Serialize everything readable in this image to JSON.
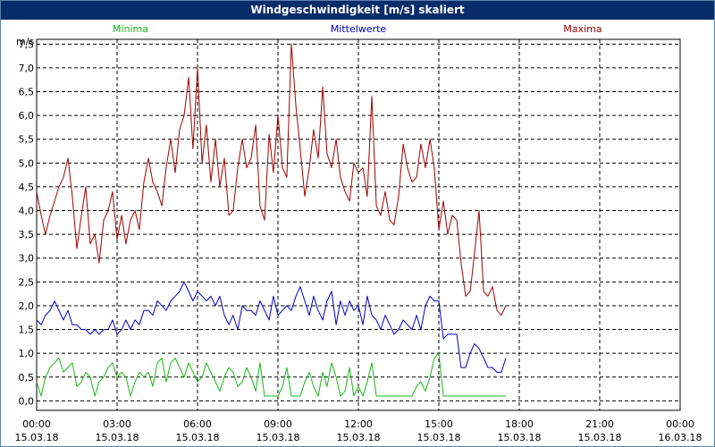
{
  "window": {
    "title": "Windgeschwindigkeit [m/s] skaliert"
  },
  "colors": {
    "min": "#18b818",
    "mean": "#0000c0",
    "max": "#a00000",
    "title_bg": "#0a2c6a"
  },
  "chart_data": {
    "type": "line",
    "title": "Windgeschwindigkeit [m/s] skaliert",
    "ylabel": "m/s",
    "xlabel": "",
    "ylim": [
      -0.2,
      7.6
    ],
    "xlim_hours": [
      0,
      24
    ],
    "y_ticks": [
      "0,0",
      "0,5",
      "1,0",
      "1,5",
      "2,0",
      "2,5",
      "3,0",
      "3,5",
      "4,0",
      "4,5",
      "5,0",
      "5,5",
      "6,0",
      "6,5",
      "7,0",
      "7,5"
    ],
    "y_tick_values": [
      0,
      0.5,
      1,
      1.5,
      2,
      2.5,
      3,
      3.5,
      4,
      4.5,
      5,
      5.5,
      6,
      6.5,
      7,
      7.5
    ],
    "x_ticks": [
      {
        "hour": 0,
        "time": "00:00",
        "date": "15.03.18"
      },
      {
        "hour": 3,
        "time": "03:00",
        "date": "15.03.18"
      },
      {
        "hour": 6,
        "time": "06:00",
        "date": "15.03.18"
      },
      {
        "hour": 9,
        "time": "09:00",
        "date": "15.03.18"
      },
      {
        "hour": 12,
        "time": "12:00",
        "date": "15.03.18"
      },
      {
        "hour": 15,
        "time": "15:00",
        "date": "15.03.18"
      },
      {
        "hour": 18,
        "time": "18:00",
        "date": "15.03.18"
      },
      {
        "hour": 21,
        "time": "21:00",
        "date": "15.03.18"
      },
      {
        "hour": 24,
        "time": "00:00",
        "date": "16.03.18"
      }
    ],
    "grid": true,
    "legend": {
      "min": "Minima",
      "mean": "Mittelwerte",
      "max": "Maxima"
    },
    "series": [
      {
        "name": "Minima",
        "key": "min",
        "x": [
          0,
          0.17,
          0.33,
          0.5,
          0.67,
          0.83,
          1.0,
          1.17,
          1.33,
          1.5,
          1.67,
          1.83,
          2.0,
          2.17,
          2.33,
          2.5,
          2.67,
          2.83,
          3.0,
          3.17,
          3.33,
          3.5,
          3.67,
          3.83,
          4.0,
          4.17,
          4.33,
          4.5,
          4.67,
          4.83,
          5.0,
          5.17,
          5.33,
          5.5,
          5.67,
          5.83,
          6.0,
          6.17,
          6.33,
          6.5,
          6.67,
          6.83,
          7.0,
          7.17,
          7.33,
          7.5,
          7.67,
          7.83,
          8.0,
          8.17,
          8.33,
          8.5,
          8.67,
          8.83,
          9.0,
          9.17,
          9.33,
          9.5,
          9.67,
          9.83,
          10.0,
          10.17,
          10.33,
          10.5,
          10.67,
          10.83,
          11.0,
          11.17,
          11.33,
          11.5,
          11.67,
          11.83,
          12.0,
          12.17,
          12.33,
          12.5,
          12.67,
          12.83,
          13.0,
          13.17,
          13.33,
          13.5,
          13.67,
          13.83,
          14.0,
          14.17,
          14.33,
          14.5,
          14.67,
          14.83,
          15.0,
          15.17,
          15.33,
          15.5,
          15.67,
          15.83,
          16.0,
          16.17,
          16.33,
          16.5,
          16.67,
          16.83,
          17.0,
          17.17,
          17.33,
          17.5
        ],
        "y": [
          0.4,
          0.1,
          0.5,
          0.7,
          0.8,
          0.9,
          0.6,
          0.7,
          0.8,
          0.3,
          0.4,
          0.6,
          0.5,
          0.1,
          0.4,
          0.5,
          0.7,
          0.8,
          0.5,
          0.6,
          0.5,
          0.1,
          0.4,
          0.6,
          0.5,
          0.6,
          0.3,
          0.8,
          0.9,
          0.4,
          0.8,
          0.9,
          0.7,
          0.5,
          0.8,
          0.6,
          0.4,
          0.5,
          0.8,
          0.6,
          0.4,
          0.2,
          0.5,
          0.7,
          0.6,
          0.3,
          0.4,
          0.7,
          0.5,
          0.2,
          0.8,
          0.1,
          0.1,
          0.1,
          0.1,
          0.3,
          0.7,
          0.1,
          0.1,
          0.1,
          0.4,
          0.6,
          0.3,
          0.1,
          0.6,
          0.3,
          0.8,
          0.5,
          0.1,
          0.2,
          0.7,
          0.1,
          0.3,
          0.1,
          0.4,
          0.8,
          0.1,
          0.1,
          0.1,
          0.1,
          0.1,
          0.1,
          0.1,
          0.1,
          0.1,
          0.3,
          0.4,
          0.2,
          0.5,
          0.9,
          1.0,
          0.1,
          0.1,
          0.1,
          0.1,
          0.1,
          0.1,
          0.1,
          0.1,
          0.1,
          0.1,
          0.1,
          0.1,
          0.1,
          0.1,
          0.1
        ]
      },
      {
        "name": "Mittelwerte",
        "key": "mean",
        "x": [
          0,
          0.17,
          0.33,
          0.5,
          0.67,
          0.83,
          1.0,
          1.17,
          1.33,
          1.5,
          1.67,
          1.83,
          2.0,
          2.17,
          2.33,
          2.5,
          2.67,
          2.83,
          3.0,
          3.17,
          3.33,
          3.5,
          3.67,
          3.83,
          4.0,
          4.17,
          4.33,
          4.5,
          4.67,
          4.83,
          5.0,
          5.17,
          5.33,
          5.5,
          5.67,
          5.83,
          6.0,
          6.17,
          6.33,
          6.5,
          6.67,
          6.83,
          7.0,
          7.17,
          7.33,
          7.5,
          7.67,
          7.83,
          8.0,
          8.17,
          8.33,
          8.5,
          8.67,
          8.83,
          9.0,
          9.17,
          9.33,
          9.5,
          9.67,
          9.83,
          10.0,
          10.17,
          10.33,
          10.5,
          10.67,
          10.83,
          11.0,
          11.17,
          11.33,
          11.5,
          11.67,
          11.83,
          12.0,
          12.17,
          12.33,
          12.5,
          12.67,
          12.83,
          13.0,
          13.17,
          13.33,
          13.5,
          13.67,
          13.83,
          14.0,
          14.17,
          14.33,
          14.5,
          14.67,
          14.83,
          15.0,
          15.17,
          15.33,
          15.5,
          15.67,
          15.83,
          16.0,
          16.17,
          16.33,
          16.5,
          16.67,
          16.83,
          17.0,
          17.17,
          17.33,
          17.5
        ],
        "y": [
          1.7,
          1.6,
          1.8,
          1.9,
          2.1,
          1.9,
          1.7,
          1.9,
          1.6,
          1.6,
          1.5,
          1.5,
          1.4,
          1.5,
          1.4,
          1.5,
          1.5,
          1.7,
          1.4,
          1.5,
          1.7,
          1.5,
          1.7,
          1.6,
          1.9,
          1.9,
          1.8,
          2.1,
          2.0,
          1.9,
          2.1,
          2.2,
          2.3,
          2.5,
          2.3,
          2.1,
          2.3,
          2.2,
          2.1,
          2.2,
          2.0,
          2.2,
          1.8,
          1.6,
          1.8,
          1.5,
          2.0,
          1.9,
          1.9,
          1.8,
          2.1,
          1.9,
          1.7,
          2.2,
          1.8,
          1.9,
          2.0,
          1.9,
          2.2,
          2.4,
          2.1,
          1.8,
          2.2,
          1.9,
          1.7,
          2.1,
          2.3,
          1.6,
          2.1,
          1.8,
          2.1,
          1.9,
          2.0,
          1.6,
          2.2,
          1.8,
          1.7,
          1.5,
          1.8,
          1.6,
          1.4,
          1.5,
          1.7,
          1.6,
          1.5,
          1.8,
          1.5,
          2.0,
          2.2,
          2.1,
          2.1,
          1.3,
          1.4,
          1.4,
          1.4,
          0.7,
          0.7,
          1.0,
          1.2,
          1.1,
          0.9,
          0.7,
          0.7,
          0.6,
          0.6,
          0.9
        ]
      },
      {
        "name": "Maxima",
        "key": "max",
        "x": [
          0,
          0.17,
          0.33,
          0.5,
          0.67,
          0.83,
          1.0,
          1.17,
          1.33,
          1.5,
          1.67,
          1.83,
          2.0,
          2.17,
          2.33,
          2.5,
          2.67,
          2.83,
          3.0,
          3.17,
          3.33,
          3.5,
          3.67,
          3.83,
          4.0,
          4.17,
          4.33,
          4.5,
          4.67,
          4.83,
          5.0,
          5.17,
          5.33,
          5.5,
          5.67,
          5.83,
          6.0,
          6.17,
          6.33,
          6.5,
          6.67,
          6.83,
          7.0,
          7.17,
          7.33,
          7.5,
          7.67,
          7.83,
          8.0,
          8.17,
          8.33,
          8.5,
          8.67,
          8.83,
          9.0,
          9.17,
          9.33,
          9.5,
          9.67,
          9.83,
          10.0,
          10.17,
          10.33,
          10.5,
          10.67,
          10.83,
          11.0,
          11.17,
          11.33,
          11.5,
          11.67,
          11.83,
          12.0,
          12.17,
          12.33,
          12.5,
          12.67,
          12.83,
          13.0,
          13.17,
          13.33,
          13.5,
          13.67,
          13.83,
          14.0,
          14.17,
          14.33,
          14.5,
          14.67,
          14.83,
          15.0,
          15.17,
          15.33,
          15.5,
          15.67,
          15.83,
          16.0,
          16.17,
          16.33,
          16.5,
          16.67,
          16.83,
          17.0,
          17.17,
          17.33,
          17.5
        ],
        "y": [
          4.4,
          3.9,
          3.5,
          3.9,
          4.2,
          4.5,
          4.7,
          5.1,
          4.3,
          3.2,
          3.9,
          4.5,
          3.3,
          3.5,
          2.9,
          3.8,
          4.0,
          4.4,
          3.4,
          3.9,
          3.3,
          3.8,
          4.0,
          3.6,
          4.6,
          5.1,
          4.6,
          4.4,
          4.1,
          4.9,
          5.5,
          4.8,
          5.7,
          6.0,
          6.8,
          5.3,
          7.0,
          5.0,
          5.8,
          4.6,
          5.5,
          4.5,
          5.1,
          3.9,
          4.0,
          4.9,
          5.5,
          4.9,
          5.1,
          5.8,
          4.1,
          3.8,
          5.6,
          4.8,
          6.0,
          4.9,
          4.7,
          7.5,
          6.2,
          5.3,
          4.3,
          4.9,
          5.7,
          5.1,
          6.6,
          5.2,
          4.9,
          5.5,
          4.7,
          4.4,
          4.2,
          5.0,
          4.8,
          4.9,
          4.3,
          6.4,
          4.1,
          3.9,
          4.4,
          3.8,
          3.7,
          4.3,
          5.4,
          4.9,
          4.6,
          4.7,
          5.4,
          4.9,
          5.5,
          4.9,
          3.6,
          4.2,
          3.5,
          3.9,
          3.8,
          2.9,
          2.2,
          2.3,
          3.1,
          4.0,
          2.3,
          2.2,
          2.4,
          1.9,
          1.8,
          2.0
        ]
      }
    ]
  }
}
